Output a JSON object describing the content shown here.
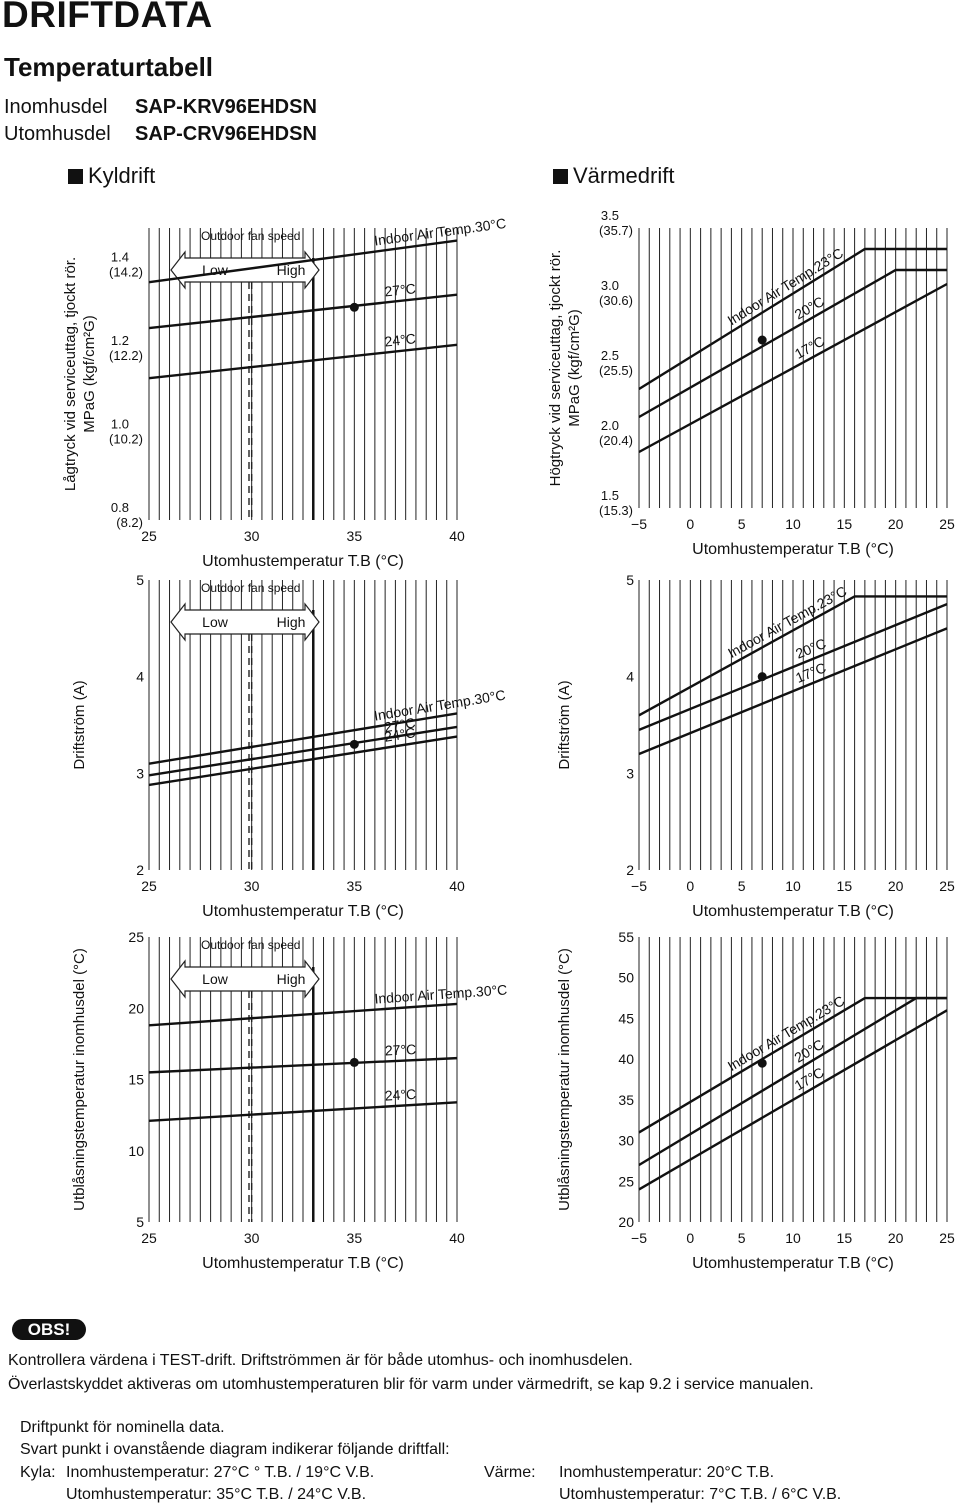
{
  "header": {
    "title": "DRIFTDATA",
    "subtitle": "Temperaturtabell",
    "indoor_label": "Inomhusdel",
    "indoor_model": "SAP-KRV96EHDSN",
    "outdoor_label": "Utomhusdel",
    "outdoor_model": "SAP-CRV96EHDSN"
  },
  "sections": {
    "cooling": "Kyldrift",
    "heating": "Värmedrift"
  },
  "fan": {
    "title": "Outdoor fan speed",
    "low": "Low",
    "high": "High"
  },
  "chart_data": [
    {
      "type": "line",
      "mode": "cooling",
      "ylabel": [
        "Lågtryck vid serviceuttag, tjockt rör.",
        "MPaG (kgf/cm²G)"
      ],
      "xlabel": "Utomhustemperatur T.B (°C)",
      "xlim": [
        25,
        40
      ],
      "ylim": [
        0.8,
        1.5
      ],
      "xticks": [
        "25",
        "30",
        "35",
        "40"
      ],
      "yticks": [
        {
          "v": 1.4,
          "t": [
            "1.4",
            "(14.2)"
          ]
        },
        {
          "v": 1.2,
          "t": [
            "1.2",
            "(12.2)"
          ]
        },
        {
          "v": 1.0,
          "t": [
            "1.0",
            "(10.2)"
          ]
        },
        {
          "v": 0.8,
          "t": [
            "0.8",
            "(8.2)"
          ]
        }
      ],
      "series": [
        {
          "name": "Indoor Air Temp.30°C",
          "x": [
            25,
            40
          ],
          "y": [
            1.37,
            1.47
          ]
        },
        {
          "name": "27°C",
          "x": [
            25,
            40
          ],
          "y": [
            1.26,
            1.34
          ]
        },
        {
          "name": "24°C",
          "x": [
            25,
            40
          ],
          "y": [
            1.14,
            1.22
          ]
        }
      ],
      "point": {
        "x": 35,
        "y": 1.31
      }
    },
    {
      "type": "line",
      "mode": "heating",
      "ylabel": [
        "Högtryck vid serviceuttag, tjockt rör.",
        "MPaG (kgf/cm²G)"
      ],
      "xlabel": "Utomhustemperatur T.B (°C)",
      "xlim": [
        -5,
        25
      ],
      "ylim": [
        1.5,
        3.5
      ],
      "xticks": [
        "−5",
        "0",
        "5",
        "10",
        "15",
        "20",
        "25"
      ],
      "yticks": [
        {
          "v": 3.5,
          "t": [
            "3.5",
            "(35.7)"
          ]
        },
        {
          "v": 3.0,
          "t": [
            "3.0",
            "(30.6)"
          ]
        },
        {
          "v": 2.5,
          "t": [
            "2.5",
            "(25.5)"
          ]
        },
        {
          "v": 2.0,
          "t": [
            "2.0",
            "(20.4)"
          ]
        },
        {
          "v": 1.5,
          "t": [
            "1.5",
            "(15.3)"
          ]
        }
      ],
      "series": [
        {
          "name": "Indoor Air Temp.23°C",
          "x": [
            -5,
            17,
            25
          ],
          "y": [
            2.35,
            3.35,
            3.35
          ]
        },
        {
          "name": "20°C",
          "x": [
            -5,
            20,
            25
          ],
          "y": [
            2.15,
            3.2,
            3.2
          ]
        },
        {
          "name": "17°C",
          "x": [
            -5,
            25
          ],
          "y": [
            1.9,
            3.1
          ]
        }
      ],
      "point": {
        "x": 7,
        "y": 2.7
      }
    },
    {
      "type": "line",
      "mode": "cooling",
      "ylabel": [
        "Driftström (A)"
      ],
      "xlabel": "Utomhustemperatur T.B (°C)",
      "xlim": [
        25,
        40
      ],
      "ylim": [
        2,
        5
      ],
      "xticks": [
        "25",
        "30",
        "35",
        "40"
      ],
      "yticks": [
        {
          "v": 5,
          "t": [
            "5"
          ]
        },
        {
          "v": 4,
          "t": [
            "4"
          ]
        },
        {
          "v": 3,
          "t": [
            "3"
          ]
        },
        {
          "v": 2,
          "t": [
            "2"
          ]
        }
      ],
      "series": [
        {
          "name": "Indoor Air Temp.30°C",
          "x": [
            25,
            40
          ],
          "y": [
            3.1,
            3.62
          ]
        },
        {
          "name": "27°C",
          "x": [
            25,
            40
          ],
          "y": [
            2.98,
            3.48
          ]
        },
        {
          "name": "24°C",
          "x": [
            25,
            40
          ],
          "y": [
            2.88,
            3.38
          ]
        }
      ],
      "point": {
        "x": 35,
        "y": 3.3
      }
    },
    {
      "type": "line",
      "mode": "heating",
      "ylabel": [
        "Driftström (A)"
      ],
      "xlabel": "Utomhustemperatur T.B (°C)",
      "xlim": [
        -5,
        25
      ],
      "ylim": [
        2,
        5
      ],
      "xticks": [
        "−5",
        "0",
        "5",
        "10",
        "15",
        "20",
        "25"
      ],
      "yticks": [
        {
          "v": 5,
          "t": [
            "5"
          ]
        },
        {
          "v": 4,
          "t": [
            "4"
          ]
        },
        {
          "v": 3,
          "t": [
            "3"
          ]
        },
        {
          "v": 2,
          "t": [
            "2"
          ]
        }
      ],
      "series": [
        {
          "name": "Indoor Air Temp.23°C",
          "x": [
            -5,
            16,
            25
          ],
          "y": [
            3.6,
            4.83,
            4.83
          ]
        },
        {
          "name": "20°C",
          "x": [
            -5,
            25
          ],
          "y": [
            3.45,
            4.75
          ]
        },
        {
          "name": "17°C",
          "x": [
            -5,
            25
          ],
          "y": [
            3.2,
            4.5
          ]
        }
      ],
      "point": {
        "x": 7,
        "y": 4.0
      }
    },
    {
      "type": "line",
      "mode": "cooling",
      "ylabel": [
        "Utblåsningstemperatur inomhusdel (°C)"
      ],
      "xlabel": "Utomhustemperatur T.B (°C)",
      "xlim": [
        25,
        40
      ],
      "ylim": [
        5,
        25
      ],
      "xticks": [
        "25",
        "30",
        "35",
        "40"
      ],
      "yticks": [
        {
          "v": 25,
          "t": [
            "25"
          ]
        },
        {
          "v": 20,
          "t": [
            "20"
          ]
        },
        {
          "v": 15,
          "t": [
            "15"
          ]
        },
        {
          "v": 10,
          "t": [
            "10"
          ]
        },
        {
          "v": 5,
          "t": [
            "5"
          ]
        }
      ],
      "series": [
        {
          "name": "Indoor Air Temp.30°C",
          "x": [
            25,
            40
          ],
          "y": [
            18.8,
            20.3
          ]
        },
        {
          "name": "27°C",
          "x": [
            25,
            40
          ],
          "y": [
            15.5,
            16.5
          ]
        },
        {
          "name": "24°C",
          "x": [
            25,
            40
          ],
          "y": [
            12.1,
            13.4
          ]
        }
      ],
      "point": {
        "x": 35,
        "y": 16.2
      }
    },
    {
      "type": "line",
      "mode": "heating",
      "ylabel": [
        "Utblåsningstemperatur inomhusdel (°C)"
      ],
      "xlabel": "Utomhustemperatur T.B (°C)",
      "xlim": [
        -5,
        25
      ],
      "ylim": [
        20,
        55
      ],
      "xticks": [
        "−5",
        "0",
        "5",
        "10",
        "15",
        "20",
        "25"
      ],
      "yticks": [
        {
          "v": 55,
          "t": [
            "55"
          ]
        },
        {
          "v": 50,
          "t": [
            "50"
          ]
        },
        {
          "v": 45,
          "t": [
            "45"
          ]
        },
        {
          "v": 40,
          "t": [
            "40"
          ]
        },
        {
          "v": 35,
          "t": [
            "35"
          ]
        },
        {
          "v": 30,
          "t": [
            "30"
          ]
        },
        {
          "v": 25,
          "t": [
            "25"
          ]
        },
        {
          "v": 20,
          "t": [
            "20"
          ]
        }
      ],
      "series": [
        {
          "name": "Indoor Air Temp.23°C",
          "x": [
            -5,
            17,
            25
          ],
          "y": [
            31,
            47.5,
            47.5
          ]
        },
        {
          "name": "20°C",
          "x": [
            -5,
            22,
            25
          ],
          "y": [
            27,
            47.5,
            47.5
          ]
        },
        {
          "name": "17°C",
          "x": [
            -5,
            25
          ],
          "y": [
            24,
            46
          ]
        }
      ],
      "point": {
        "x": 7,
        "y": 39.5
      }
    }
  ],
  "notes": {
    "badge": "OBS!",
    "line1": "Kontrollera värdena i TEST-drift. Driftströmmen är för både utomhus- och inomhusdelen.",
    "line2": "Överlastskyddet aktiveras om utomhustemperaturen blir för varm under värmedrift, se kap 9.2 i service manualen.",
    "line3": "Driftpunkt för nominella data.",
    "line4": "Svart punkt i ovanstående diagram indikerar följande driftfall:",
    "kyla_label": "Kyla:",
    "kyla_indoor": "Inomhustemperatur:  27°C  ° T.B. / 19°C  V.B.",
    "kyla_outdoor": "Utomhustemperatur: 35°C  T.B. / 24°C  V.B.",
    "varme_label": "Värme:",
    "varme_indoor": "Inomhustemperatur: 20°C  T.B.",
    "varme_outdoor": "Utomhustemperatur: 7°C  T.B. / 6°C  V.B."
  }
}
